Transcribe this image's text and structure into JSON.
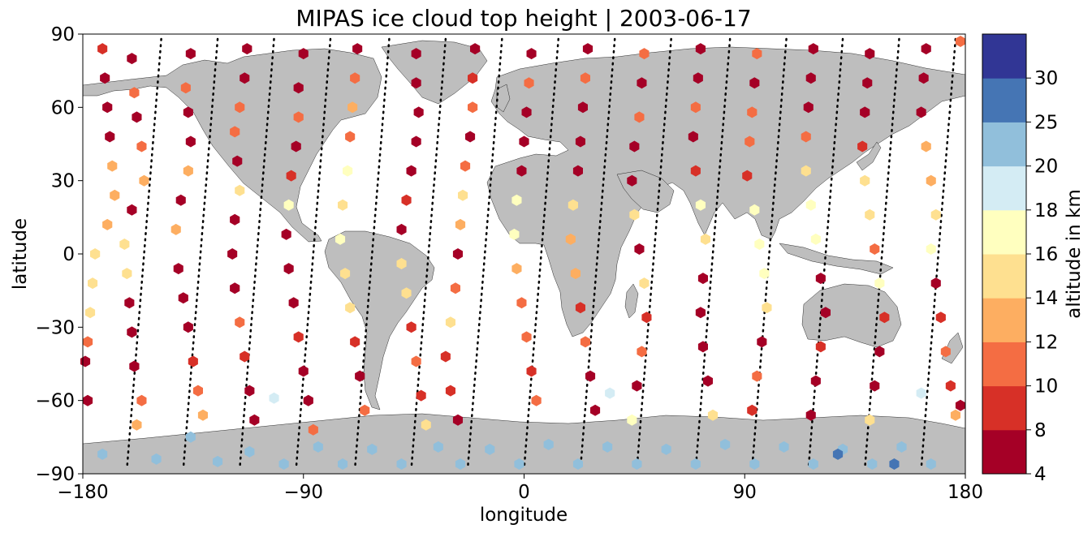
{
  "chart_data": {
    "type": "scatter",
    "title": "MIPAS ice cloud top height | 2003-06-17",
    "xlabel": "longitude",
    "ylabel": "latitude",
    "xlim": [
      -180,
      180
    ],
    "ylim": [
      -90,
      90
    ],
    "xticks": [
      "−180",
      "−90",
      "0",
      "90",
      "180"
    ],
    "yticks": [
      "90",
      "60",
      "30",
      "0",
      "−30",
      "−60",
      "−90"
    ],
    "grid": false,
    "marker": "hexagon",
    "colorbar": {
      "label": "altitude in km",
      "bounds": [
        4,
        8,
        10,
        12,
        14,
        16,
        18,
        20,
        25,
        30
      ],
      "tick_labels": [
        "4",
        "8",
        "10",
        "12",
        "14",
        "16",
        "18",
        "20",
        "25",
        "30"
      ],
      "colors": [
        "#a50026",
        "#d73027",
        "#f46d43",
        "#fdae61",
        "#fee090",
        "#ffffbf",
        "#d4ecf4",
        "#91bfdb",
        "#4575b4",
        "#313695"
      ]
    },
    "land_color": "#bebebe",
    "orbits": [
      {
        "lon_north": -148,
        "lon_south": -162
      },
      {
        "lon_north": -125,
        "lon_south": -139
      },
      {
        "lon_north": -102,
        "lon_south": -116
      },
      {
        "lon_north": -79,
        "lon_south": -93
      },
      {
        "lon_north": -55,
        "lon_south": -69
      },
      {
        "lon_north": -32,
        "lon_south": -46
      },
      {
        "lon_north": -9,
        "lon_south": -23
      },
      {
        "lon_north": 14,
        "lon_south": 0
      },
      {
        "lon_north": 37,
        "lon_south": 23
      },
      {
        "lon_north": 60,
        "lon_south": 46
      },
      {
        "lon_north": 84,
        "lon_south": 70
      },
      {
        "lon_north": 107,
        "lon_south": 93
      },
      {
        "lon_north": 130,
        "lon_south": 116
      },
      {
        "lon_north": 153,
        "lon_south": 139
      },
      {
        "lon_north": 176,
        "lon_south": 162
      }
    ],
    "points": [
      {
        "lon": -172,
        "lat": 84,
        "alt": 9
      },
      {
        "lon": -171,
        "lat": 72,
        "alt": 6
      },
      {
        "lon": -170,
        "lat": 60,
        "alt": 7
      },
      {
        "lon": -169,
        "lat": 48,
        "alt": 6
      },
      {
        "lon": -168,
        "lat": 36,
        "alt": 12
      },
      {
        "lon": -167,
        "lat": 24,
        "alt": 13
      },
      {
        "lon": -170,
        "lat": 12,
        "alt": 12
      },
      {
        "lon": -175,
        "lat": 0,
        "alt": 15
      },
      {
        "lon": -176,
        "lat": -12,
        "alt": 15
      },
      {
        "lon": -177,
        "lat": -24,
        "alt": 15
      },
      {
        "lon": -178,
        "lat": -36,
        "alt": 11
      },
      {
        "lon": -179,
        "lat": -44,
        "alt": 7
      },
      {
        "lon": -160,
        "lat": 80,
        "alt": 6
      },
      {
        "lon": -159,
        "lat": 66,
        "alt": 10
      },
      {
        "lon": -158,
        "lat": 56,
        "alt": 7
      },
      {
        "lon": -156,
        "lat": 44,
        "alt": 10
      },
      {
        "lon": -155,
        "lat": 30,
        "alt": 12
      },
      {
        "lon": -160,
        "lat": 18,
        "alt": 7
      },
      {
        "lon": -163,
        "lat": 4,
        "alt": 14
      },
      {
        "lon": -162,
        "lat": -8,
        "alt": 14
      },
      {
        "lon": -161,
        "lat": -20,
        "alt": 7
      },
      {
        "lon": -160,
        "lat": -32,
        "alt": 7
      },
      {
        "lon": -159,
        "lat": -46,
        "alt": 6
      },
      {
        "lon": -156,
        "lat": -60,
        "alt": 11
      },
      {
        "lon": -158,
        "lat": -70,
        "alt": 12
      },
      {
        "lon": -136,
        "lat": 82,
        "alt": 6
      },
      {
        "lon": -138,
        "lat": 68,
        "alt": 11
      },
      {
        "lon": -137,
        "lat": 58,
        "alt": 7
      },
      {
        "lon": -136,
        "lat": 46,
        "alt": 6
      },
      {
        "lon": -137,
        "lat": 34,
        "alt": 13
      },
      {
        "lon": -140,
        "lat": 22,
        "alt": 7
      },
      {
        "lon": -142,
        "lat": 10,
        "alt": 13
      },
      {
        "lon": -141,
        "lat": -6,
        "alt": 6
      },
      {
        "lon": -139,
        "lat": -18,
        "alt": 7
      },
      {
        "lon": -137,
        "lat": -30,
        "alt": 7
      },
      {
        "lon": -135,
        "lat": -44,
        "alt": 9
      },
      {
        "lon": -133,
        "lat": -56,
        "alt": 11
      },
      {
        "lon": -131,
        "lat": -66,
        "alt": 12
      },
      {
        "lon": -113,
        "lat": 84,
        "alt": 6
      },
      {
        "lon": -114,
        "lat": 72,
        "alt": 6
      },
      {
        "lon": -116,
        "lat": 60,
        "alt": 10
      },
      {
        "lon": -118,
        "lat": 50,
        "alt": 10
      },
      {
        "lon": -117,
        "lat": 38,
        "alt": 6
      },
      {
        "lon": -116,
        "lat": 26,
        "alt": 15
      },
      {
        "lon": -118,
        "lat": 14,
        "alt": 7
      },
      {
        "lon": -119,
        "lat": 0,
        "alt": 6
      },
      {
        "lon": -118,
        "lat": -14,
        "alt": 6
      },
      {
        "lon": -116,
        "lat": -28,
        "alt": 11
      },
      {
        "lon": -114,
        "lat": -42,
        "alt": 8
      },
      {
        "lon": -112,
        "lat": -56,
        "alt": 7
      },
      {
        "lon": -110,
        "lat": -68,
        "alt": 6
      },
      {
        "lon": -90,
        "lat": 82,
        "alt": 6
      },
      {
        "lon": -92,
        "lat": 68,
        "alt": 6
      },
      {
        "lon": -92,
        "lat": 56,
        "alt": 11
      },
      {
        "lon": -93,
        "lat": 44,
        "alt": 6
      },
      {
        "lon": -95,
        "lat": 32,
        "alt": 9
      },
      {
        "lon": -96,
        "lat": 20,
        "alt": 17
      },
      {
        "lon": -97,
        "lat": 8,
        "alt": 7
      },
      {
        "lon": -96,
        "lat": -6,
        "alt": 7
      },
      {
        "lon": -94,
        "lat": -20,
        "alt": 6
      },
      {
        "lon": -92,
        "lat": -34,
        "alt": 8
      },
      {
        "lon": -90,
        "lat": -48,
        "alt": 7
      },
      {
        "lon": -88,
        "lat": -60,
        "alt": 6
      },
      {
        "lon": -86,
        "lat": -72,
        "alt": 10
      },
      {
        "lon": -68,
        "lat": 84,
        "alt": 7
      },
      {
        "lon": -69,
        "lat": 72,
        "alt": 11
      },
      {
        "lon": -70,
        "lat": 60,
        "alt": 12
      },
      {
        "lon": -71,
        "lat": 48,
        "alt": 10
      },
      {
        "lon": -72,
        "lat": 34,
        "alt": 17
      },
      {
        "lon": -74,
        "lat": 20,
        "alt": 15
      },
      {
        "lon": -75,
        "lat": 6,
        "alt": 17
      },
      {
        "lon": -73,
        "lat": -8,
        "alt": 15
      },
      {
        "lon": -71,
        "lat": -22,
        "alt": 15
      },
      {
        "lon": -69,
        "lat": -36,
        "alt": 8
      },
      {
        "lon": -67,
        "lat": -50,
        "alt": 6
      },
      {
        "lon": -65,
        "lat": -64,
        "alt": 11
      },
      {
        "lon": -44,
        "lat": 82,
        "alt": 7
      },
      {
        "lon": -44,
        "lat": 70,
        "alt": 6
      },
      {
        "lon": -43,
        "lat": 58,
        "alt": 6
      },
      {
        "lon": -44,
        "lat": 46,
        "alt": 6
      },
      {
        "lon": -46,
        "lat": 34,
        "alt": 7
      },
      {
        "lon": -48,
        "lat": 22,
        "alt": 9
      },
      {
        "lon": -50,
        "lat": 10,
        "alt": 6
      },
      {
        "lon": -50,
        "lat": -4,
        "alt": 15
      },
      {
        "lon": -48,
        "lat": -16,
        "alt": 15
      },
      {
        "lon": -46,
        "lat": -30,
        "alt": 9
      },
      {
        "lon": -44,
        "lat": -44,
        "alt": 11
      },
      {
        "lon": -42,
        "lat": -58,
        "alt": 8
      },
      {
        "lon": -40,
        "lat": -70,
        "alt": 15
      },
      {
        "lon": -20,
        "lat": 84,
        "alt": 7
      },
      {
        "lon": -21,
        "lat": 72,
        "alt": 8
      },
      {
        "lon": -21,
        "lat": 60,
        "alt": 11
      },
      {
        "lon": -22,
        "lat": 48,
        "alt": 6
      },
      {
        "lon": -24,
        "lat": 36,
        "alt": 11
      },
      {
        "lon": -25,
        "lat": 24,
        "alt": 15
      },
      {
        "lon": -26,
        "lat": 12,
        "alt": 13
      },
      {
        "lon": -27,
        "lat": 0,
        "alt": 7
      },
      {
        "lon": -28,
        "lat": -14,
        "alt": 11
      },
      {
        "lon": -30,
        "lat": -28,
        "alt": 15
      },
      {
        "lon": -32,
        "lat": -42,
        "alt": 8
      },
      {
        "lon": -30,
        "lat": -56,
        "alt": 9
      },
      {
        "lon": -27,
        "lat": -68,
        "alt": 6
      },
      {
        "lon": 3,
        "lat": 82,
        "alt": 7
      },
      {
        "lon": 2,
        "lat": 70,
        "alt": 10
      },
      {
        "lon": 1,
        "lat": 58,
        "alt": 7
      },
      {
        "lon": 0,
        "lat": 46,
        "alt": 6
      },
      {
        "lon": -1,
        "lat": 34,
        "alt": 7
      },
      {
        "lon": -3,
        "lat": 22,
        "alt": 17
      },
      {
        "lon": -4,
        "lat": 8,
        "alt": 17
      },
      {
        "lon": -3,
        "lat": -6,
        "alt": 13
      },
      {
        "lon": -1,
        "lat": -20,
        "alt": 11
      },
      {
        "lon": 1,
        "lat": -34,
        "alt": 11
      },
      {
        "lon": 3,
        "lat": -48,
        "alt": 9
      },
      {
        "lon": 5,
        "lat": -60,
        "alt": 11
      },
      {
        "lon": 26,
        "lat": 84,
        "alt": 6
      },
      {
        "lon": 25,
        "lat": 72,
        "alt": 11
      },
      {
        "lon": 24,
        "lat": 60,
        "alt": 7
      },
      {
        "lon": 23,
        "lat": 46,
        "alt": 6
      },
      {
        "lon": 22,
        "lat": 34,
        "alt": 6
      },
      {
        "lon": 20,
        "lat": 20,
        "alt": 15
      },
      {
        "lon": 19,
        "lat": 6,
        "alt": 13
      },
      {
        "lon": 21,
        "lat": -8,
        "alt": 13
      },
      {
        "lon": 23,
        "lat": -22,
        "alt": 8
      },
      {
        "lon": 25,
        "lat": -36,
        "alt": 11
      },
      {
        "lon": 27,
        "lat": -50,
        "alt": 6
      },
      {
        "lon": 29,
        "lat": -64,
        "alt": 6
      },
      {
        "lon": 49,
        "lat": 82,
        "alt": 10
      },
      {
        "lon": 48,
        "lat": 70,
        "alt": 6
      },
      {
        "lon": 47,
        "lat": 56,
        "alt": 11
      },
      {
        "lon": 45,
        "lat": 44,
        "alt": 7
      },
      {
        "lon": 44,
        "lat": 30,
        "alt": 7
      },
      {
        "lon": 45,
        "lat": 16,
        "alt": 15
      },
      {
        "lon": 47,
        "lat": 2,
        "alt": 7
      },
      {
        "lon": 49,
        "lat": -12,
        "alt": 15
      },
      {
        "lon": 50,
        "lat": -26,
        "alt": 8
      },
      {
        "lon": 48,
        "lat": -40,
        "alt": 11
      },
      {
        "lon": 46,
        "lat": -54,
        "alt": 6
      },
      {
        "lon": 44,
        "lat": -68,
        "alt": 17
      },
      {
        "lon": 72,
        "lat": 84,
        "alt": 7
      },
      {
        "lon": 71,
        "lat": 72,
        "alt": 6
      },
      {
        "lon": 70,
        "lat": 60,
        "alt": 10
      },
      {
        "lon": 69,
        "lat": 48,
        "alt": 6
      },
      {
        "lon": 70,
        "lat": 34,
        "alt": 8
      },
      {
        "lon": 72,
        "lat": 20,
        "alt": 17
      },
      {
        "lon": 74,
        "lat": 6,
        "alt": 15
      },
      {
        "lon": 73,
        "lat": -10,
        "alt": 6
      },
      {
        "lon": 72,
        "lat": -24,
        "alt": 7
      },
      {
        "lon": 73,
        "lat": -38,
        "alt": 6
      },
      {
        "lon": 75,
        "lat": -52,
        "alt": 6
      },
      {
        "lon": 77,
        "lat": -66,
        "alt": 15
      },
      {
        "lon": 95,
        "lat": 82,
        "alt": 11
      },
      {
        "lon": 94,
        "lat": 70,
        "alt": 7
      },
      {
        "lon": 93,
        "lat": 58,
        "alt": 10
      },
      {
        "lon": 92,
        "lat": 46,
        "alt": 11
      },
      {
        "lon": 91,
        "lat": 32,
        "alt": 8
      },
      {
        "lon": 94,
        "lat": 18,
        "alt": 17
      },
      {
        "lon": 96,
        "lat": 4,
        "alt": 17
      },
      {
        "lon": 98,
        "lat": -8,
        "alt": 17
      },
      {
        "lon": 99,
        "lat": -22,
        "alt": 15
      },
      {
        "lon": 97,
        "lat": -36,
        "alt": 7
      },
      {
        "lon": 95,
        "lat": -50,
        "alt": 11
      },
      {
        "lon": 93,
        "lat": -64,
        "alt": 9
      },
      {
        "lon": 118,
        "lat": 84,
        "alt": 7
      },
      {
        "lon": 117,
        "lat": 72,
        "alt": 6
      },
      {
        "lon": 116,
        "lat": 60,
        "alt": 7
      },
      {
        "lon": 115,
        "lat": 48,
        "alt": 11
      },
      {
        "lon": 115,
        "lat": 34,
        "alt": 15
      },
      {
        "lon": 117,
        "lat": 20,
        "alt": 17
      },
      {
        "lon": 119,
        "lat": 6,
        "alt": 17
      },
      {
        "lon": 121,
        "lat": -10,
        "alt": 7
      },
      {
        "lon": 123,
        "lat": -24,
        "alt": 6
      },
      {
        "lon": 121,
        "lat": -38,
        "alt": 9
      },
      {
        "lon": 119,
        "lat": -52,
        "alt": 6
      },
      {
        "lon": 117,
        "lat": -66,
        "alt": 6
      },
      {
        "lon": 141,
        "lat": 82,
        "alt": 6
      },
      {
        "lon": 140,
        "lat": 70,
        "alt": 7
      },
      {
        "lon": 139,
        "lat": 58,
        "alt": 6
      },
      {
        "lon": 138,
        "lat": 44,
        "alt": 9
      },
      {
        "lon": 139,
        "lat": 30,
        "alt": 15
      },
      {
        "lon": 141,
        "lat": 16,
        "alt": 15
      },
      {
        "lon": 143,
        "lat": 2,
        "alt": 11
      },
      {
        "lon": 145,
        "lat": -12,
        "alt": 17
      },
      {
        "lon": 147,
        "lat": -26,
        "alt": 9
      },
      {
        "lon": 145,
        "lat": -40,
        "alt": 6
      },
      {
        "lon": 143,
        "lat": -54,
        "alt": 7
      },
      {
        "lon": 141,
        "lat": -68,
        "alt": 15
      },
      {
        "lon": 164,
        "lat": 84,
        "alt": 6
      },
      {
        "lon": 163,
        "lat": 72,
        "alt": 7
      },
      {
        "lon": 162,
        "lat": 58,
        "alt": 6
      },
      {
        "lon": 164,
        "lat": 44,
        "alt": 13
      },
      {
        "lon": 166,
        "lat": 30,
        "alt": 13
      },
      {
        "lon": 168,
        "lat": 16,
        "alt": 15
      },
      {
        "lon": 166,
        "lat": 2,
        "alt": 17
      },
      {
        "lon": 168,
        "lat": -12,
        "alt": 7
      },
      {
        "lon": 170,
        "lat": -26,
        "alt": 9
      },
      {
        "lon": 172,
        "lat": -40,
        "alt": 11
      },
      {
        "lon": 174,
        "lat": -54,
        "alt": 9
      },
      {
        "lon": 176,
        "lat": -66,
        "alt": 13
      },
      {
        "lon": -178,
        "lat": -60,
        "alt": 6
      },
      {
        "lon": 178,
        "lat": -62,
        "alt": 6
      },
      {
        "lon": 178,
        "lat": 87,
        "alt": 11
      },
      {
        "lon": 162,
        "lat": -57,
        "alt": 19
      },
      {
        "lon": 35,
        "lat": -57,
        "alt": 19
      },
      {
        "lon": -102,
        "lat": -59,
        "alt": 19
      },
      {
        "lon": -136,
        "lat": -75,
        "alt": 22
      },
      {
        "lon": -112,
        "lat": -81,
        "alt": 22
      },
      {
        "lon": -84,
        "lat": -79,
        "alt": 22
      },
      {
        "lon": -62,
        "lat": -80,
        "alt": 22
      },
      {
        "lon": -35,
        "lat": -79,
        "alt": 22
      },
      {
        "lon": -14,
        "lat": -80,
        "alt": 22
      },
      {
        "lon": 10,
        "lat": -78,
        "alt": 22
      },
      {
        "lon": 34,
        "lat": -79,
        "alt": 22
      },
      {
        "lon": 58,
        "lat": -80,
        "alt": 22
      },
      {
        "lon": 82,
        "lat": -78,
        "alt": 22
      },
      {
        "lon": 106,
        "lat": -79,
        "alt": 22
      },
      {
        "lon": 130,
        "lat": -80,
        "alt": 22
      },
      {
        "lon": 154,
        "lat": -79,
        "alt": 22
      },
      {
        "lon": -172,
        "lat": -82,
        "alt": 22
      },
      {
        "lon": -150,
        "lat": -84,
        "alt": 22
      },
      {
        "lon": -125,
        "lat": -85,
        "alt": 22
      },
      {
        "lon": -98,
        "lat": -86,
        "alt": 22
      },
      {
        "lon": -74,
        "lat": -86,
        "alt": 22
      },
      {
        "lon": -50,
        "lat": -86,
        "alt": 22
      },
      {
        "lon": -26,
        "lat": -86,
        "alt": 22
      },
      {
        "lon": -2,
        "lat": -86,
        "alt": 22
      },
      {
        "lon": 22,
        "lat": -86,
        "alt": 22
      },
      {
        "lon": 46,
        "lat": -86,
        "alt": 22
      },
      {
        "lon": 70,
        "lat": -86,
        "alt": 22
      },
      {
        "lon": 94,
        "lat": -86,
        "alt": 22
      },
      {
        "lon": 118,
        "lat": -86,
        "alt": 22
      },
      {
        "lon": 142,
        "lat": -86,
        "alt": 22
      },
      {
        "lon": 166,
        "lat": -86,
        "alt": 22
      },
      {
        "lon": 128,
        "lat": -82,
        "alt": 28
      },
      {
        "lon": 151,
        "lat": -86,
        "alt": 28
      }
    ]
  }
}
